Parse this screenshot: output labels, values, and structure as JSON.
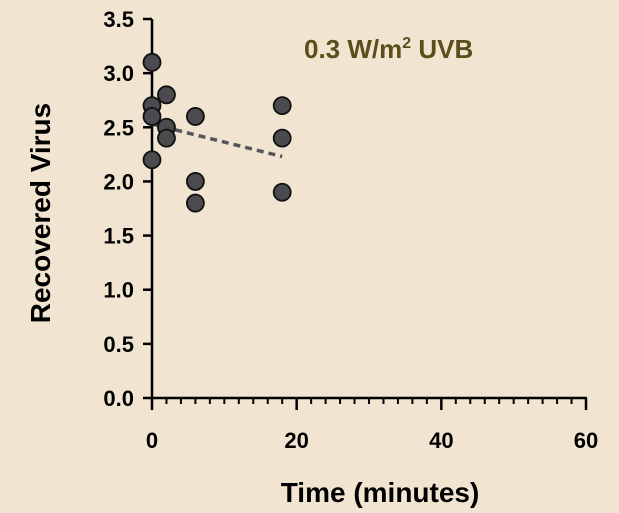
{
  "colors": {
    "background": "#f1e5d1",
    "title": "#5a4e1c",
    "point_fill": "#4a4a4f",
    "point_stroke": "#111111",
    "trend": "#55555c",
    "axis": "#000000"
  },
  "chart_data": {
    "type": "scatter",
    "title": {
      "prefix": "0.3 W/m",
      "superscript": "2",
      "suffix": " UVB"
    },
    "xlabel": "Time (minutes)",
    "ylabel": "Recovered Virus",
    "xlim": [
      0,
      60
    ],
    "ylim": [
      0,
      3.5
    ],
    "xticks": [
      0,
      20,
      40,
      60
    ],
    "xtick_labels": [
      "0",
      "20",
      "40",
      "60"
    ],
    "x_minor_step": 2,
    "yticks": [
      0,
      0.5,
      1.0,
      1.5,
      2.0,
      2.5,
      3.0,
      3.5
    ],
    "ytick_labels": [
      "0.0",
      "0.5",
      "1.0",
      "1.5",
      "2.0",
      "2.5",
      "3.0",
      "3.5"
    ],
    "grid": false,
    "series": [
      {
        "points": [
          {
            "x": 0,
            "y": 3.1
          },
          {
            "x": 0,
            "y": 2.7
          },
          {
            "x": 0,
            "y": 2.6
          },
          {
            "x": 0,
            "y": 2.2
          },
          {
            "x": 2,
            "y": 2.8
          },
          {
            "x": 2,
            "y": 2.5
          },
          {
            "x": 2,
            "y": 2.4
          },
          {
            "x": 6,
            "y": 2.6
          },
          {
            "x": 6,
            "y": 2.0
          },
          {
            "x": 6,
            "y": 1.8
          },
          {
            "x": 18,
            "y": 2.7
          },
          {
            "x": 18,
            "y": 2.4
          },
          {
            "x": 18,
            "y": 1.9
          }
        ]
      }
    ],
    "trendline": {
      "style": "dashed",
      "points": [
        {
          "x": 0,
          "y": 2.53
        },
        {
          "x": 18,
          "y": 2.23
        }
      ]
    }
  }
}
